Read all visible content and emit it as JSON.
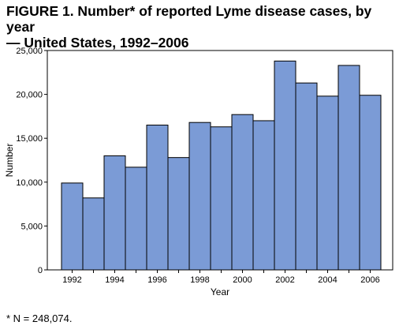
{
  "title": {
    "line1": "FIGURE 1. Number* of reported Lyme disease cases, by year",
    "line2": "— United States, 1992–2006"
  },
  "footnote": "* N = 248,074.",
  "chart_data": {
    "type": "bar",
    "xlabel": "Year",
    "ylabel": "Number",
    "categories": [
      "1992",
      "1993",
      "1994",
      "1995",
      "1996",
      "1997",
      "1998",
      "1999",
      "2000",
      "2001",
      "2002",
      "2003",
      "2004",
      "2005",
      "2006"
    ],
    "x_tick_labels": [
      "1992",
      "1994",
      "1996",
      "1998",
      "2000",
      "2002",
      "2004",
      "2006"
    ],
    "y_tick_labels": [
      "0",
      "5,000",
      "10,000",
      "15,000",
      "20,000",
      "25,000"
    ],
    "values": [
      9900,
      8200,
      13000,
      11700,
      16500,
      12800,
      16800,
      16300,
      17700,
      17000,
      23800,
      21300,
      19800,
      23300,
      19900
    ],
    "ylim": [
      0,
      25000
    ],
    "yticks": [
      0,
      5000,
      10000,
      15000,
      20000,
      25000
    ],
    "bar_color": "#7b9bd6",
    "bar_edge_color": "#000000",
    "grid": false,
    "legend": "none"
  }
}
